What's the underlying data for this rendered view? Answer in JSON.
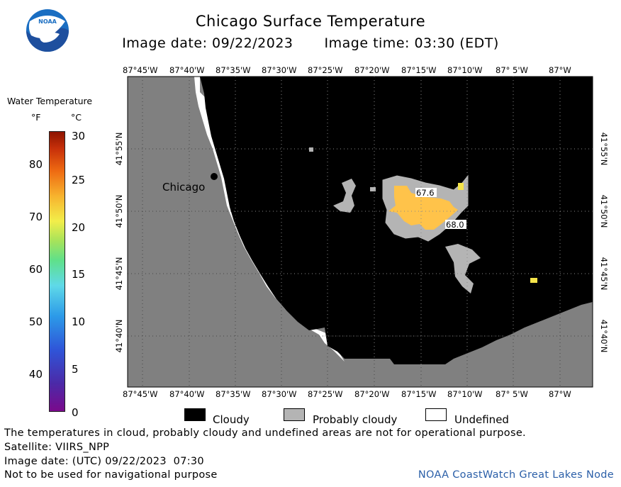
{
  "header": {
    "title": "Chicago Surface Temperature",
    "image_date": "Image date: 09/22/2023",
    "image_time": "Image time: 03:30 (EDT)"
  },
  "logo": {
    "text": "NOAA"
  },
  "map": {
    "lon_labels": [
      "87°45'W",
      "87°40'W",
      "87°35'W",
      "87°30'W",
      "87°25'W",
      "87°20'W",
      "87°15'W",
      "87°10'W",
      "87° 5'W",
      "87°W"
    ],
    "lat_labels": [
      "41°55'N",
      "41°50'N",
      "41°45'N",
      "41°40'N"
    ],
    "city_label": "Chicago",
    "temp_labels": [
      "67.6",
      "68.0"
    ],
    "colors": {
      "land": "#808080",
      "cloudy": "#000000",
      "probably_cloudy": "#b4b4b4",
      "undefined": "#ffffff",
      "warm_water": "#ffc34a",
      "warm_water_bright": "#f5e44a"
    }
  },
  "legend": {
    "title": "Water Temperature",
    "unit_f": "°F",
    "unit_c": "°C",
    "f_ticks": [
      "80",
      "70",
      "60",
      "50",
      "40"
    ],
    "c_ticks": [
      "30",
      "25",
      "20",
      "15",
      "10",
      "5",
      "0"
    ]
  },
  "key": {
    "cloudy": "Cloudy",
    "probably_cloudy": "Probably cloudy",
    "undefined": "Undefined"
  },
  "footer": {
    "disclaimer": "The temperatures in cloud, probably cloudy and undefined areas are not for operational purpose.",
    "satellite": "Satellite: VIIRS_NPP",
    "utc_date": "Image date: (UTC) 09/22/2023  07:30",
    "nav_warning": "Not to be used for navigational purpose",
    "credit": "NOAA CoastWatch Great Lakes Node"
  }
}
